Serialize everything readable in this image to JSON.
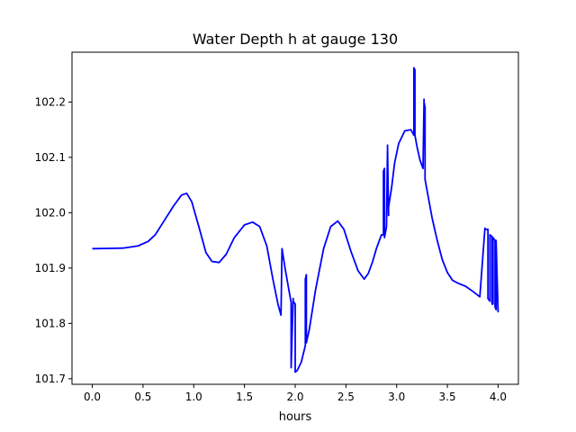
{
  "chart_data": {
    "type": "line",
    "title": "Water Depth h at gauge 130",
    "xlabel": "hours",
    "ylabel": "",
    "xlim": [
      -0.2,
      4.2
    ],
    "ylim": [
      101.69,
      102.29
    ],
    "xticks": [
      0.0,
      0.5,
      1.0,
      1.5,
      2.0,
      2.5,
      3.0,
      3.5,
      4.0
    ],
    "xtick_labels": [
      "0.0",
      "0.5",
      "1.0",
      "1.5",
      "2.0",
      "2.5",
      "3.0",
      "3.5",
      "4.0"
    ],
    "yticks": [
      101.7,
      101.8,
      101.9,
      102.0,
      102.1,
      102.2
    ],
    "ytick_labels": [
      "101.7",
      "101.8",
      "101.9",
      "102.0",
      "102.1",
      "102.2"
    ],
    "grid": false,
    "legend": "none",
    "series": [
      {
        "color": "#0000ff",
        "x": [
          0.0,
          0.3,
          0.45,
          0.55,
          0.62,
          0.7,
          0.8,
          0.88,
          0.93,
          0.98,
          1.05,
          1.12,
          1.18,
          1.25,
          1.32,
          1.4,
          1.5,
          1.58,
          1.65,
          1.72,
          1.78,
          1.83,
          1.86,
          1.87,
          1.87,
          1.9,
          1.94,
          1.96,
          1.96,
          1.98,
          1.98,
          2.0,
          2.0,
          2.02,
          2.06,
          2.1,
          2.1,
          2.11,
          2.11,
          2.14,
          2.2,
          2.28,
          2.35,
          2.42,
          2.48,
          2.55,
          2.62,
          2.68,
          2.72,
          2.76,
          2.8,
          2.85,
          2.87,
          2.87,
          2.88,
          2.88,
          2.89,
          2.9,
          2.91,
          2.91,
          2.92,
          2.92,
          2.95,
          2.98,
          3.02,
          3.08,
          3.14,
          3.17,
          3.17,
          3.18,
          3.18,
          3.2,
          3.23,
          3.26,
          3.27,
          3.27,
          3.28,
          3.28,
          3.3,
          3.35,
          3.4,
          3.45,
          3.5,
          3.55,
          3.6,
          3.68,
          3.75,
          3.82,
          3.87,
          3.87,
          3.9,
          3.9,
          3.92,
          3.92,
          3.94,
          3.94,
          3.95,
          3.95,
          3.97,
          3.97,
          3.98,
          3.98,
          4.0
        ],
        "y": [
          101.935,
          101.936,
          101.94,
          101.948,
          101.96,
          101.983,
          102.012,
          102.032,
          102.035,
          102.02,
          101.975,
          101.928,
          101.912,
          101.91,
          101.925,
          101.955,
          101.978,
          101.983,
          101.975,
          101.94,
          101.88,
          101.835,
          101.815,
          101.935,
          101.935,
          101.9,
          101.858,
          101.838,
          101.72,
          101.845,
          101.84,
          101.835,
          101.712,
          101.715,
          101.73,
          101.76,
          101.88,
          101.888,
          101.765,
          101.79,
          101.86,
          101.935,
          101.975,
          101.985,
          101.97,
          101.93,
          101.895,
          101.88,
          101.89,
          101.91,
          101.935,
          101.96,
          101.96,
          102.075,
          102.08,
          101.955,
          101.965,
          101.975,
          102.118,
          102.122,
          101.995,
          102.01,
          102.045,
          102.09,
          102.125,
          102.148,
          102.15,
          102.14,
          102.262,
          102.258,
          102.14,
          102.12,
          102.095,
          102.08,
          102.205,
          102.2,
          102.19,
          102.06,
          102.04,
          101.99,
          101.95,
          101.915,
          101.892,
          101.878,
          101.873,
          101.867,
          101.858,
          101.848,
          101.972,
          101.97,
          101.97,
          101.845,
          101.84,
          101.96,
          101.957,
          101.835,
          101.835,
          101.955,
          101.95,
          101.83,
          101.825,
          101.95,
          101.82
        ]
      }
    ]
  }
}
